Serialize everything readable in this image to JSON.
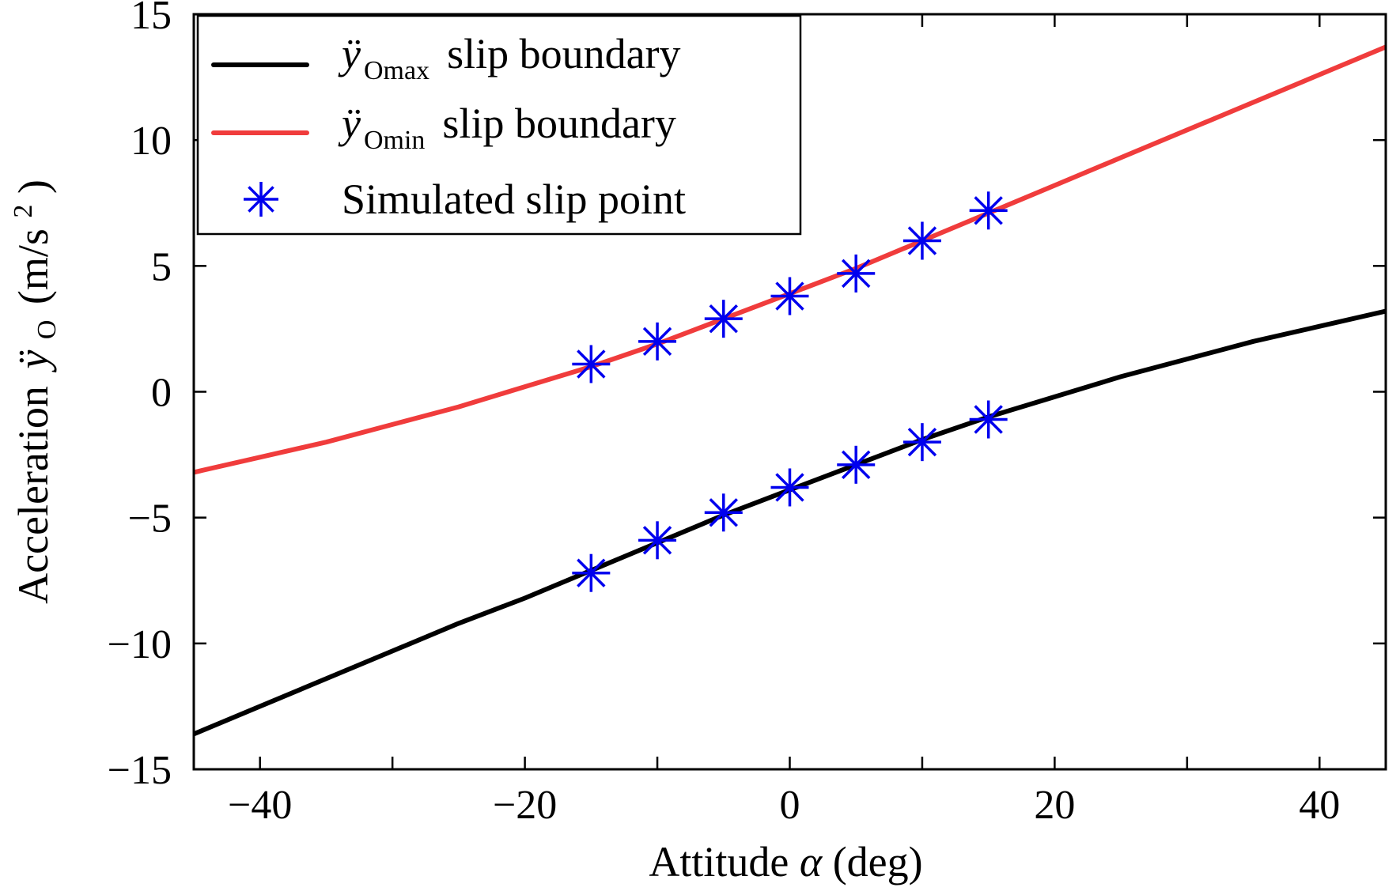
{
  "chart_data": {
    "type": "line",
    "xlabel": "Attitude α (deg)",
    "xlabel_text": "Attitude",
    "xlabel_symbol": "α",
    "xlabel_unit": "(deg)",
    "ylabel": "Acceleration ÿO (m/s²)",
    "ylabel_text": "Acceleration",
    "ylabel_symbol": "ÿ",
    "ylabel_sub": "O",
    "ylabel_unit": "(m/s",
    "ylabel_sup": "2",
    "ylabel_close": ")",
    "xlim": [
      -45,
      45
    ],
    "ylim": [
      -15,
      15
    ],
    "xticks": [
      -40,
      -20,
      0,
      20,
      40
    ],
    "xtick_labels": [
      "−40",
      "−20",
      "0",
      "20",
      "40"
    ],
    "yticks": [
      -15,
      -10,
      -5,
      0,
      5,
      10,
      15
    ],
    "ytick_labels": [
      "−15",
      "−10",
      "−5",
      "0",
      "5",
      "10",
      "15"
    ],
    "grid": false,
    "legend_position": "top-left",
    "series": [
      {
        "name": "ÿOmax slip boundary",
        "legend_symbol": "ÿ",
        "legend_sub": "Omax",
        "legend_text": "slip boundary",
        "kind": "line",
        "color": "#000000",
        "x": [
          -45,
          -40,
          -35,
          -30,
          -25,
          -20,
          -15,
          -10,
          -5,
          0,
          5,
          10,
          15,
          20,
          25,
          30,
          35,
          40,
          45
        ],
        "y": [
          -13.6,
          -12.5,
          -11.4,
          -10.3,
          -9.2,
          -8.2,
          -7.1,
          -6.0,
          -4.9,
          -3.9,
          -2.9,
          -1.9,
          -1.0,
          -0.2,
          0.6,
          1.3,
          2.0,
          2.6,
          3.2
        ]
      },
      {
        "name": "ÿOmin slip boundary",
        "legend_symbol": "ÿ",
        "legend_sub": "Omin",
        "legend_text": "slip boundary",
        "kind": "line",
        "color": "#f03c3c",
        "x": [
          -45,
          -40,
          -35,
          -30,
          -25,
          -20,
          -15,
          -10,
          -5,
          0,
          5,
          10,
          15,
          20,
          25,
          30,
          35,
          40,
          45
        ],
        "y": [
          -3.2,
          -2.6,
          -2.0,
          -1.3,
          -0.6,
          0.2,
          1.0,
          1.9,
          2.9,
          3.9,
          4.9,
          6.0,
          7.1,
          8.2,
          9.3,
          10.4,
          11.5,
          12.6,
          13.7
        ]
      },
      {
        "name": "Simulated slip point",
        "legend_text": "Simulated slip point",
        "kind": "scatter",
        "color": "#0000ee",
        "x": [
          -15,
          -10,
          -5,
          0,
          5,
          10,
          15,
          -15,
          -10,
          -5,
          0,
          5,
          10,
          15
        ],
        "y": [
          1.1,
          2.0,
          2.9,
          3.8,
          4.7,
          6.0,
          7.2,
          -7.2,
          -5.9,
          -4.8,
          -3.8,
          -2.9,
          -2.0,
          -1.1
        ]
      }
    ]
  }
}
